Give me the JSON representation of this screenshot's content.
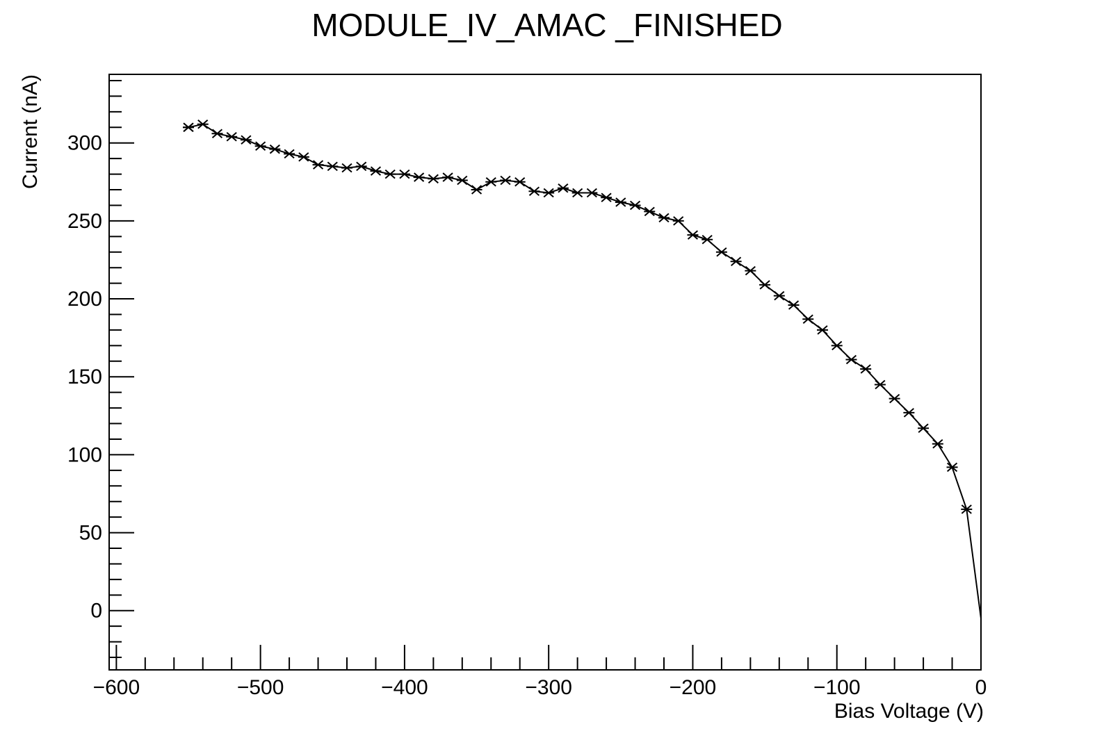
{
  "chart_data": {
    "type": "line",
    "title": "MODULE_IV_AMAC _FINISHED",
    "xlabel": "Bias Voltage (V)",
    "ylabel": "Current (nA)",
    "xlim": [
      -605,
      0
    ],
    "ylim": [
      -38,
      344
    ],
    "x_ticks": [
      -600,
      -500,
      -400,
      -300,
      -200,
      -100,
      0
    ],
    "x_tick_labels": [
      "−600",
      "−500",
      "−400",
      "−300",
      "−200",
      "−100",
      "0"
    ],
    "y_ticks": [
      0,
      50,
      100,
      150,
      200,
      250,
      300
    ],
    "y_tick_labels": [
      "0",
      "50",
      "100",
      "150",
      "200",
      "250",
      "300"
    ],
    "grid": false,
    "legend": "none",
    "marker": "asterisk",
    "color": "#000000",
    "series": [
      {
        "x": [
          0,
          -10,
          -20,
          -30,
          -40,
          -50,
          -60,
          -70,
          -80,
          -90,
          -100,
          -110,
          -120,
          -130,
          -140,
          -150,
          -160,
          -170,
          -180,
          -190,
          -200,
          -210,
          -220,
          -230,
          -240,
          -250,
          -260,
          -270,
          -280,
          -290,
          -300,
          -310,
          -320,
          -330,
          -340,
          -350,
          -360,
          -370,
          -380,
          -390,
          -400,
          -410,
          -420,
          -430,
          -440,
          -450,
          -460,
          -470,
          -480,
          -490,
          -500,
          -510,
          -520,
          -530,
          -540,
          -550,
          -550
        ],
        "y": [
          -5,
          65,
          92,
          107,
          117,
          127,
          136,
          145,
          155,
          161,
          170,
          180,
          187,
          196,
          202,
          209,
          218,
          224,
          230,
          238,
          241,
          250,
          252,
          256,
          260,
          262,
          265,
          268,
          268,
          271,
          268,
          269,
          275,
          276,
          275,
          270,
          276,
          278,
          277,
          278,
          280,
          280,
          282,
          285,
          284,
          285,
          286,
          291,
          293,
          296,
          298,
          302,
          304,
          306,
          312,
          310,
          310
        ],
        "markers": [
          false,
          true,
          true,
          true,
          true,
          true,
          true,
          true,
          true,
          true,
          true,
          true,
          true,
          true,
          true,
          true,
          true,
          true,
          true,
          true,
          true,
          true,
          true,
          true,
          true,
          true,
          true,
          true,
          true,
          true,
          true,
          true,
          true,
          true,
          true,
          true,
          true,
          true,
          true,
          true,
          true,
          true,
          true,
          true,
          true,
          true,
          true,
          true,
          true,
          true,
          true,
          true,
          true,
          true,
          true,
          true,
          true
        ]
      }
    ]
  }
}
